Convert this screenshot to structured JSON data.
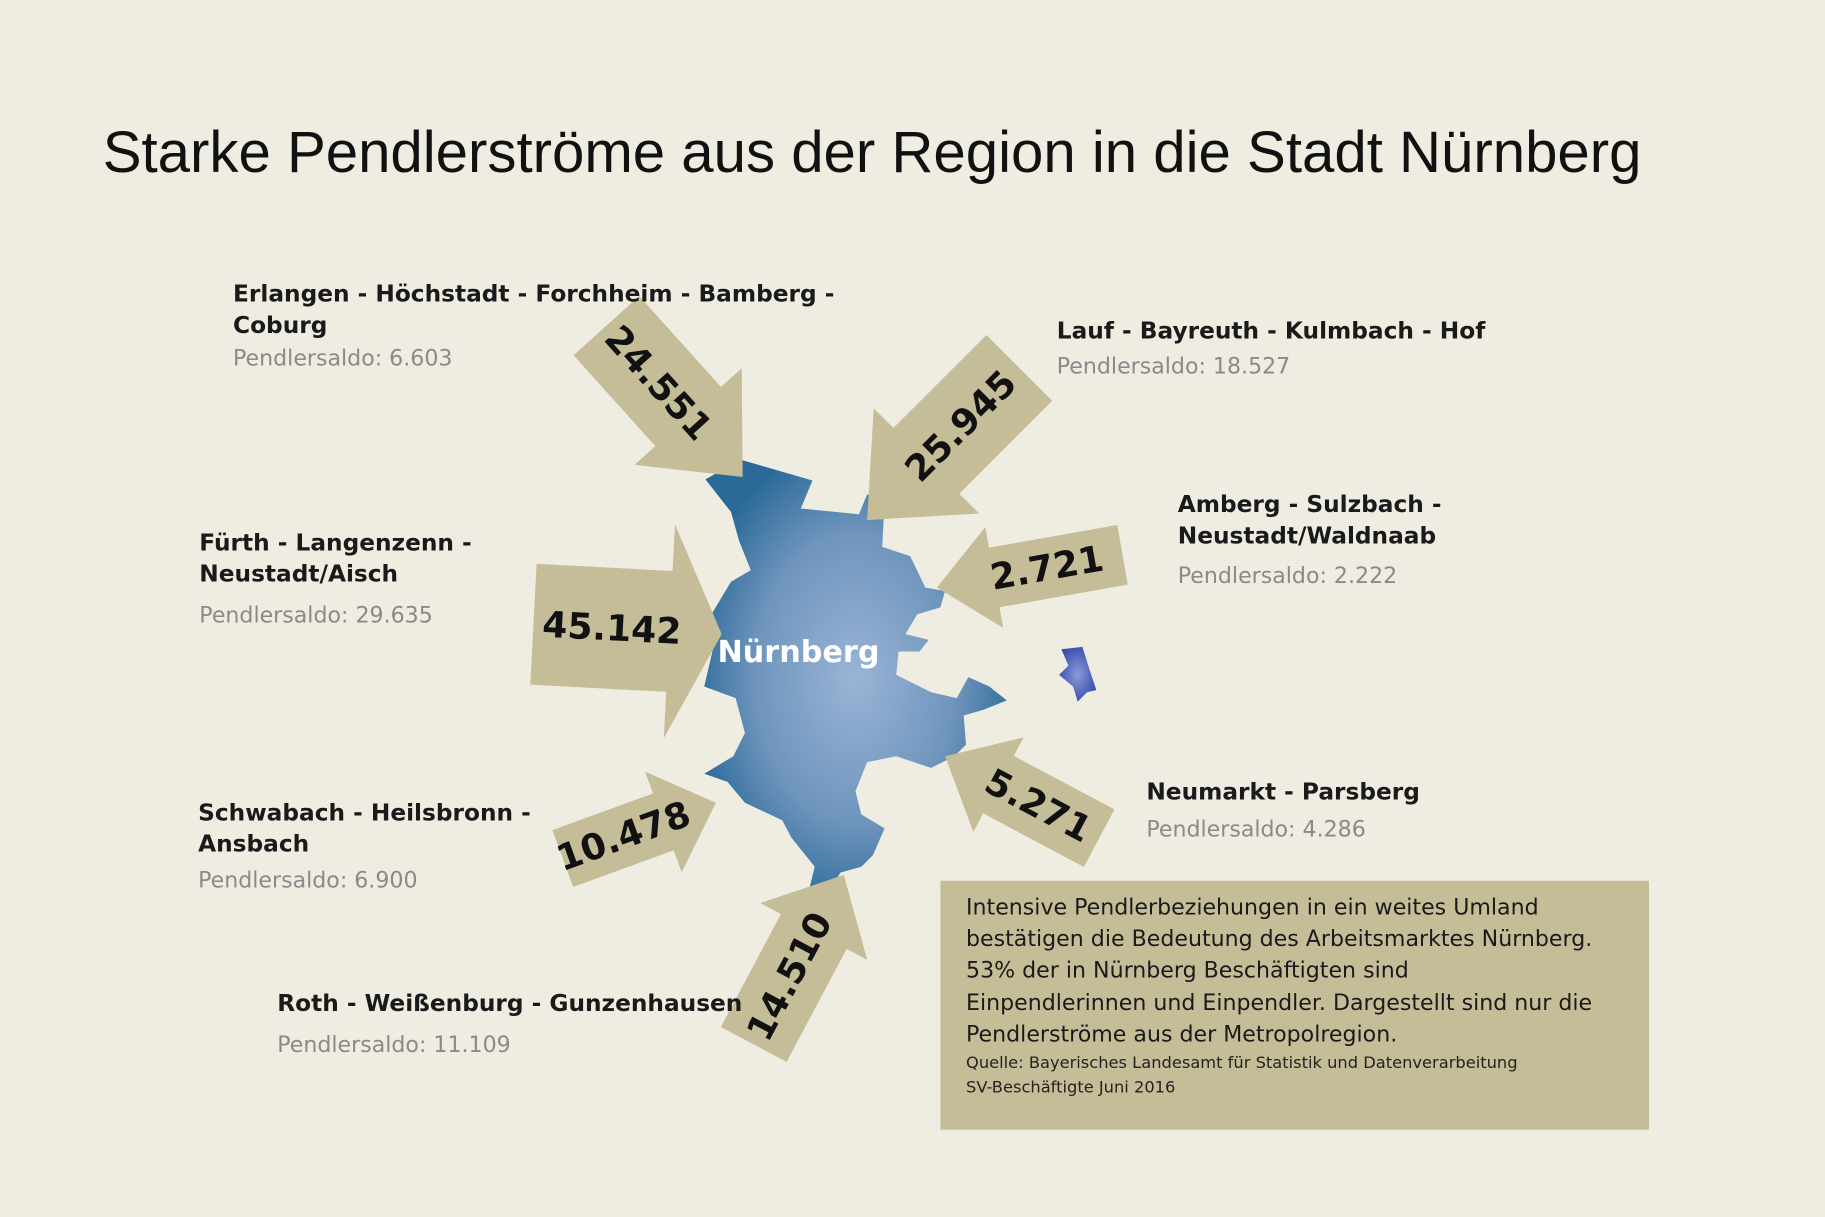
{
  "title": "Starke Pendlerströme aus der Region in die Stadt Nürnberg",
  "city": "Nürnberg",
  "colors": {
    "background": "#efece2",
    "arrow": "#c5bd98",
    "city_dark": "#2d6b98",
    "city_light": "#9ab4d6",
    "enclave": "#4455aa",
    "note_box": "#c5bd98"
  },
  "regions": [
    {
      "name_lines": [
        "Erlangen - Höchstadt - Forchheim - Bamberg -",
        "Coburg"
      ],
      "saldo": "Pendlersaldo: 6.603",
      "inflow": "24.551"
    },
    {
      "name_lines": [
        "Lauf - Bayreuth - Kulmbach - Hof"
      ],
      "saldo": "Pendlersaldo: 18.527",
      "inflow": "25.945"
    },
    {
      "name_lines": [
        "Fürth - Langenzenn -",
        "Neustadt/Aisch"
      ],
      "saldo": "Pendlersaldo: 29.635",
      "inflow": "45.142"
    },
    {
      "name_lines": [
        "Amberg - Sulzbach -",
        "Neustadt/Waldnaab"
      ],
      "saldo": "Pendlersaldo: 2.222",
      "inflow": "2.721"
    },
    {
      "name_lines": [
        "Neumarkt - Parsberg"
      ],
      "saldo": "Pendlersaldo: 4.286",
      "inflow": "5.271"
    },
    {
      "name_lines": [
        "Schwabach - Heilsbronn -",
        "Ansbach"
      ],
      "saldo": "Pendlersaldo: 6.900",
      "inflow": "10.478"
    },
    {
      "name_lines": [
        "Roth - Weißenburg - Gunzenhausen"
      ],
      "saldo": "Pendlersaldo: 11.109",
      "inflow": "14.510"
    }
  ],
  "note": {
    "lines": [
      "Intensive Pendlerbeziehungen in ein weites Umland",
      "bestätigen die Bedeutung des Arbeitsmarktes Nürnberg.",
      "53% der in Nürnberg Beschäftigten sind",
      "Einpendlerinnen und Einpendler. Dargestellt sind nur die",
      "Pendlerströme aus der Metropolregion."
    ],
    "source_lines": [
      "Quelle: Bayerisches Landesamt für Statistik und Datenverarbeitung",
      "SV-Beschäftigte  Juni 2016"
    ]
  }
}
